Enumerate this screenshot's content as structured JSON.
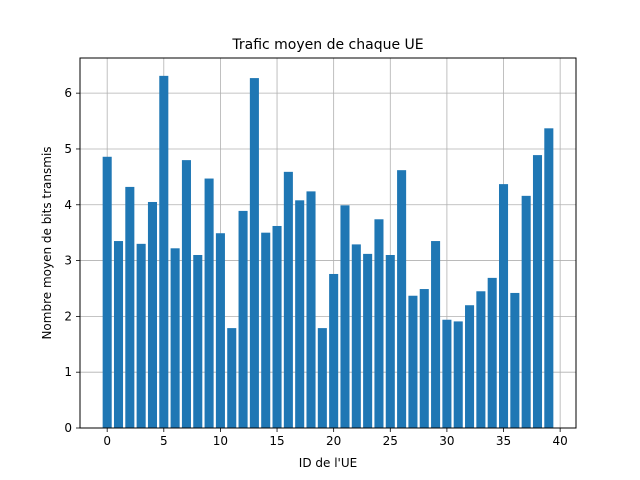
{
  "chart_data": {
    "type": "bar",
    "title": "Trafic moyen de chaque UE",
    "xlabel": "ID de l'UE",
    "ylabel": "Nombre moyen de bits transmis",
    "x": [
      0,
      1,
      2,
      3,
      4,
      5,
      6,
      7,
      8,
      9,
      10,
      11,
      12,
      13,
      14,
      15,
      16,
      17,
      18,
      19,
      20,
      21,
      22,
      23,
      24,
      25,
      26,
      27,
      28,
      29,
      30,
      31,
      32,
      33,
      34,
      35,
      36,
      37,
      38,
      39
    ],
    "values": [
      4.86,
      3.35,
      4.32,
      3.3,
      4.05,
      6.31,
      3.22,
      4.8,
      3.1,
      4.47,
      3.49,
      1.79,
      3.89,
      6.27,
      3.5,
      3.62,
      4.59,
      4.08,
      4.24,
      1.79,
      2.76,
      3.99,
      3.29,
      3.12,
      3.74,
      3.1,
      4.62,
      2.37,
      2.49,
      3.35,
      1.94,
      1.91,
      2.2,
      2.45,
      2.69,
      4.37,
      2.42,
      4.16,
      4.89,
      5.37
    ],
    "xlim": [
      -2.4,
      41.4
    ],
    "ylim": [
      0,
      6.63
    ],
    "xticks": [
      0,
      5,
      10,
      15,
      20,
      25,
      30,
      35,
      40
    ],
    "yticks": [
      0,
      1,
      2,
      3,
      4,
      5,
      6
    ],
    "grid": true,
    "bar_color": "#1f77b4",
    "grid_color": "#b0b0b0"
  }
}
